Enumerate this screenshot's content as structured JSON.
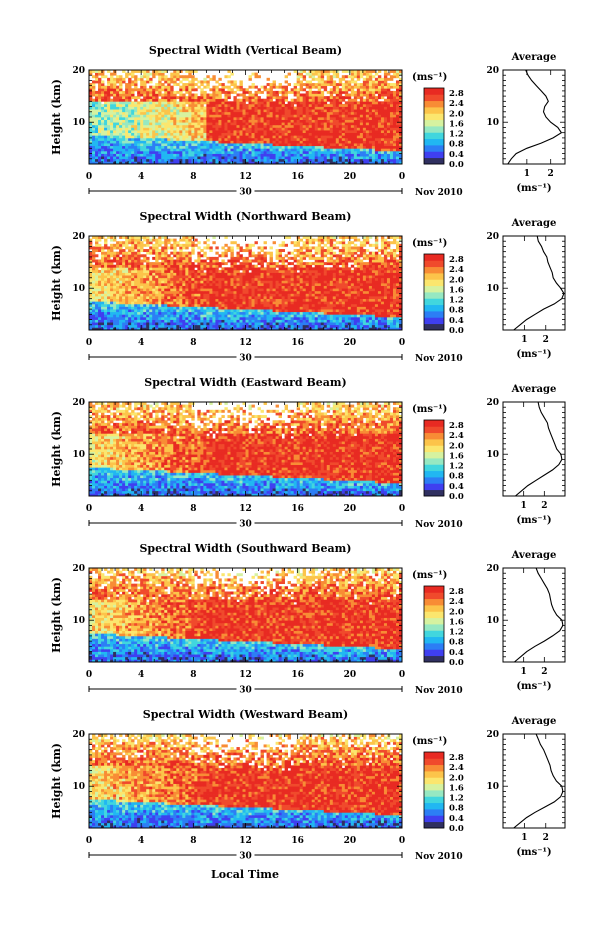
{
  "figure": {
    "ylabel": "Height (km)",
    "xlabel": "Local Time",
    "cb_unit": "(ms⁻¹)",
    "avg_unit": "(ms⁻¹)",
    "date_day": "30",
    "date_month": "Nov 2010",
    "colors": {
      "background": "#ffffff",
      "line": "#000000",
      "missing": "#ffffff",
      "colormap": [
        "#303060",
        "#3f3ff0",
        "#2c7ef5",
        "#21b7f2",
        "#41d6de",
        "#96e8c2",
        "#d6f2a0",
        "#fbe66e",
        "#fcc44a",
        "#f88c35",
        "#f04a2c",
        "#e82a22"
      ]
    }
  },
  "chart_data": [
    {
      "type": "heatmap",
      "title": "Spectral Width (Vertical Beam)",
      "xlabel": "Local Time",
      "ylabel": "Height (km)",
      "xlim": [
        0,
        24
      ],
      "ylim": [
        2,
        20
      ],
      "xticks": [
        "0",
        "4",
        "8",
        "12",
        "16",
        "20",
        "0"
      ],
      "yticks": [
        "10",
        "20"
      ],
      "colorbar": {
        "label": "(ms⁻¹)",
        "ticks": [
          "0.0",
          "0.4",
          "0.8",
          "1.2",
          "1.6",
          "2.0",
          "2.4",
          "2.8"
        ],
        "range": [
          0,
          3.0
        ]
      },
      "average_profile": {
        "title": "Average",
        "xlabel": "(ms⁻¹)",
        "xticks": [
          "1",
          "2"
        ],
        "xlim": [
          0,
          2.6
        ],
        "height_km": [
          2,
          3,
          4,
          5,
          6,
          7,
          8,
          9,
          10,
          11,
          12,
          13,
          14,
          15,
          16,
          17,
          18,
          19,
          20
        ],
        "width": [
          0.2,
          0.35,
          0.55,
          1.0,
          1.6,
          2.1,
          2.45,
          2.3,
          2.0,
          1.8,
          1.7,
          1.75,
          1.9,
          1.8,
          1.6,
          1.4,
          1.2,
          1.05,
          0.95
        ]
      },
      "max_height_km": 12.5
    },
    {
      "type": "heatmap",
      "title": "Spectral Width (Northward Beam)",
      "xlabel": "Local Time",
      "ylabel": "Height (km)",
      "xlim": [
        0,
        24
      ],
      "ylim": [
        2,
        20
      ],
      "xticks": [
        "0",
        "4",
        "8",
        "12",
        "16",
        "20",
        "0"
      ],
      "yticks": [
        "10",
        "20"
      ],
      "colorbar": {
        "label": "(ms⁻¹)",
        "ticks": [
          "0.0",
          "0.4",
          "0.8",
          "1.2",
          "1.6",
          "2.0",
          "2.4",
          "2.8"
        ],
        "range": [
          0,
          3.0
        ]
      },
      "average_profile": {
        "title": "Average",
        "xlabel": "(ms⁻¹)",
        "xticks": [
          "1",
          "2"
        ],
        "xlim": [
          0,
          2.9
        ],
        "height_km": [
          2,
          3,
          4,
          5,
          6,
          7,
          8,
          9,
          10,
          11,
          12,
          13,
          14,
          15,
          16,
          17,
          18,
          19,
          20
        ],
        "width": [
          0.5,
          0.8,
          1.1,
          1.5,
          1.9,
          2.4,
          2.75,
          2.85,
          2.7,
          2.5,
          2.35,
          2.3,
          2.2,
          2.1,
          2.05,
          1.9,
          1.8,
          1.65,
          1.6
        ]
      },
      "max_height_km": 12.5
    },
    {
      "type": "heatmap",
      "title": "Spectral Width (Eastward Beam)",
      "xlabel": "Local Time",
      "ylabel": "Height (km)",
      "xlim": [
        0,
        24
      ],
      "ylim": [
        2,
        20
      ],
      "xticks": [
        "0",
        "4",
        "8",
        "12",
        "16",
        "20",
        "0"
      ],
      "yticks": [
        "10",
        "20"
      ],
      "colorbar": {
        "label": "(ms⁻¹)",
        "ticks": [
          "0.0",
          "0.4",
          "0.8",
          "1.2",
          "1.6",
          "2.0",
          "2.4",
          "2.8"
        ],
        "range": [
          0,
          3.0
        ]
      },
      "average_profile": {
        "title": "Average",
        "xlabel": "(ms⁻¹)",
        "xticks": [
          "1",
          "2"
        ],
        "xlim": [
          0,
          3.0
        ],
        "height_km": [
          2,
          3,
          4,
          5,
          6,
          7,
          8,
          9,
          10,
          11,
          12,
          13,
          14,
          15,
          16,
          17,
          18,
          19,
          20
        ],
        "width": [
          0.6,
          0.9,
          1.2,
          1.6,
          2.0,
          2.4,
          2.7,
          2.85,
          2.8,
          2.6,
          2.5,
          2.4,
          2.3,
          2.2,
          2.15,
          2.0,
          1.85,
          1.75,
          1.7
        ]
      },
      "max_height_km": 12.5
    },
    {
      "type": "heatmap",
      "title": "Spectral Width (Southward Beam)",
      "xlabel": "Local Time",
      "ylabel": "Height (km)",
      "xlim": [
        0,
        24
      ],
      "ylim": [
        2,
        20
      ],
      "xticks": [
        "0",
        "4",
        "8",
        "12",
        "16",
        "20",
        "0"
      ],
      "yticks": [
        "10",
        "20"
      ],
      "colorbar": {
        "label": "(ms⁻¹)",
        "ticks": [
          "0.0",
          "0.4",
          "0.8",
          "1.2",
          "1.6",
          "2.0",
          "2.4",
          "2.8"
        ],
        "range": [
          0,
          3.0
        ]
      },
      "average_profile": {
        "title": "Average",
        "xlabel": "(ms⁻¹)",
        "xticks": [
          "1",
          "2"
        ],
        "xlim": [
          0,
          3.0
        ],
        "height_km": [
          2,
          3,
          4,
          5,
          6,
          7,
          8,
          9,
          10,
          11,
          12,
          13,
          14,
          15,
          16,
          17,
          18,
          19,
          20
        ],
        "width": [
          0.55,
          0.85,
          1.15,
          1.55,
          2.0,
          2.4,
          2.75,
          2.9,
          2.85,
          2.6,
          2.45,
          2.35,
          2.3,
          2.25,
          2.15,
          2.0,
          1.85,
          1.7,
          1.6
        ]
      },
      "max_height_km": 12.5
    },
    {
      "type": "heatmap",
      "title": "Spectral Width (Westward Beam)",
      "xlabel": "Local Time",
      "ylabel": "Height (km)",
      "xlim": [
        0,
        24
      ],
      "ylim": [
        2,
        20
      ],
      "xticks": [
        "0",
        "4",
        "8",
        "12",
        "16",
        "20",
        "0"
      ],
      "yticks": [
        "10",
        "20"
      ],
      "colorbar": {
        "label": "(ms⁻¹)",
        "ticks": [
          "0.0",
          "0.4",
          "0.8",
          "1.2",
          "1.6",
          "2.0",
          "2.4",
          "2.8"
        ],
        "range": [
          0,
          3.0
        ]
      },
      "average_profile": {
        "title": "Average",
        "xlabel": "(ms⁻¹)",
        "xticks": [
          "1",
          "2"
        ],
        "xlim": [
          0,
          2.9
        ],
        "height_km": [
          2,
          3,
          4,
          5,
          6,
          7,
          8,
          9,
          10,
          11,
          12,
          13,
          14,
          15,
          16,
          17,
          18,
          19,
          20
        ],
        "width": [
          0.5,
          0.8,
          1.1,
          1.5,
          1.95,
          2.4,
          2.7,
          2.8,
          2.75,
          2.5,
          2.35,
          2.25,
          2.2,
          2.1,
          2.0,
          1.9,
          1.75,
          1.65,
          1.55
        ]
      },
      "max_height_km": 12.5
    }
  ]
}
